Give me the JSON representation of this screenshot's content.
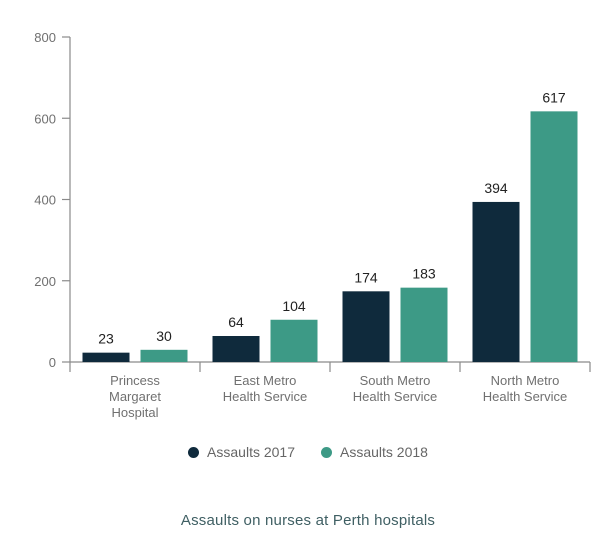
{
  "chart_data": {
    "type": "bar",
    "categories": [
      [
        "Princess",
        "Margaret",
        "Hospital"
      ],
      [
        "East Metro",
        "Health Service"
      ],
      [
        "South Metro",
        "Health Service"
      ],
      [
        "North Metro",
        "Health Service"
      ]
    ],
    "series": [
      {
        "name": "Assaults 2017",
        "values": [
          23,
          64,
          174,
          394
        ],
        "color": "#0f2a3c"
      },
      {
        "name": "Assaults 2018",
        "values": [
          30,
          104,
          183,
          617
        ],
        "color": "#3d9a86"
      }
    ],
    "ylim": [
      0,
      800
    ],
    "yticks": [
      0,
      200,
      400,
      600,
      800
    ],
    "grid": false,
    "legend_position": "bottom"
  },
  "caption": "Assaults on nurses at Perth hospitals"
}
